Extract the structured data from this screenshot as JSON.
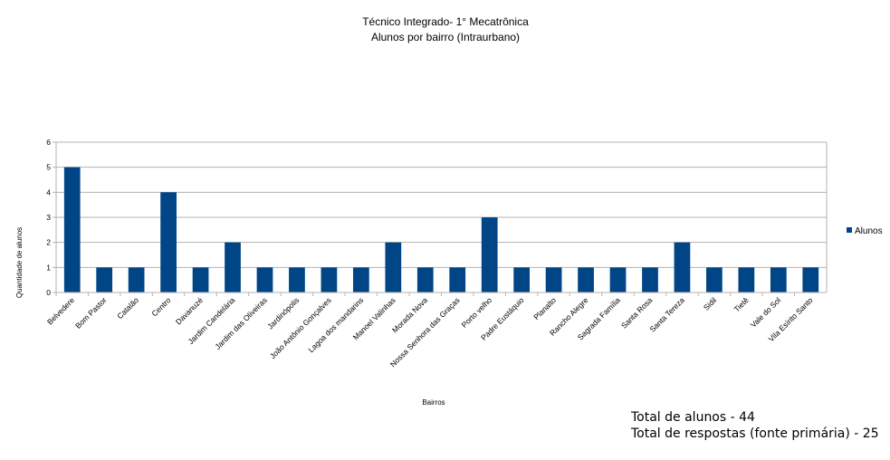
{
  "chart_data": {
    "type": "bar",
    "title": "Técnico Integrado-  1° Mecatrônica",
    "subtitle": "Alunos por bairro (Intraurbano)",
    "xlabel": "Bairros",
    "ylabel": "Quantidade de alunos",
    "ylim": [
      0,
      6
    ],
    "yticks": [
      "0",
      "1",
      "2",
      "3",
      "4",
      "5",
      "6"
    ],
    "grid": true,
    "legend_position": "right",
    "bar_color": "#004586",
    "categories": [
      "Belvedere",
      "Bom Pastor",
      "Catalão",
      "Centro",
      "Davanuzé",
      "Jardim Candelária",
      "Jardim das Oliveiras",
      "Jardinópolis",
      "João Antônio Gonçalves",
      "Lagoa dos mandarins",
      "Manoel Valinhas",
      "Morada Nova",
      "Nossa Senhora das Graças",
      "Porto velho",
      "Padre Eustáquio",
      "Planalto",
      "Rancho Alegre",
      "Sagrada Família",
      "Santa Rosa",
      "Santa Tereza",
      "Sidil",
      "Tietê",
      "Vale do Sol",
      "Vila Esírito Santo"
    ],
    "series": [
      {
        "name": "Alunos",
        "values": [
          5,
          1,
          1,
          4,
          1,
          2,
          1,
          1,
          1,
          1,
          2,
          1,
          1,
          3,
          1,
          1,
          1,
          1,
          1,
          2,
          1,
          1,
          1,
          1
        ]
      }
    ]
  },
  "notes": {
    "total_alunos": "Total de alunos - 44",
    "total_respostas": "Total de respostas (fonte primária) - 25"
  }
}
